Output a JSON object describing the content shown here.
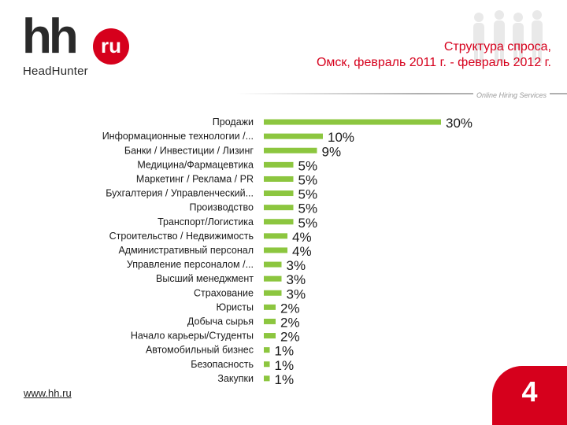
{
  "header": {
    "logo_hh": "hh",
    "logo_ru": "ru",
    "logo_sub": "HeadHunter",
    "title_line1": "Структура спроса,",
    "title_line2": "Омск, февраль 2011 г. - февраль 2012 г.",
    "tagline": "Online Hiring Services"
  },
  "footer": {
    "url": "www.hh.ru",
    "page_number": "4"
  },
  "colors": {
    "bar": "#8cc63f",
    "brand_red": "#d6001c",
    "label": "#1a1a1a"
  },
  "chart_data": {
    "type": "bar",
    "orientation": "horizontal",
    "categories": [
      "Продажи",
      "Информационные технологии /...",
      "Банки / Инвестиции / Лизинг",
      "Медицина/Фармацевтика",
      "Маркетинг / Реклама / PR",
      "Бухгалтерия / Управленческий...",
      "Производство",
      "Транспорт/Логистика",
      "Строительство / Недвижимость",
      "Административный персонал",
      "Управление персоналом /...",
      "Высший менеджмент",
      "Страхование",
      "Юристы",
      "Добыча сырья",
      "Начало карьеры/Студенты",
      "Автомобильный бизнес",
      "Безопасность",
      "Закупки"
    ],
    "values": [
      30,
      10,
      9,
      5,
      5,
      5,
      5,
      5,
      4,
      4,
      3,
      3,
      3,
      2,
      2,
      2,
      1,
      1,
      1
    ],
    "value_labels": [
      "30%",
      "10%",
      "9%",
      "5%",
      "5%",
      "5%",
      "5%",
      "5%",
      "4%",
      "4%",
      "3%",
      "3%",
      "3%",
      "2%",
      "2%",
      "2%",
      "1%",
      "1%",
      "1%"
    ],
    "unit": "%",
    "xlim": [
      0,
      30
    ],
    "grid": false,
    "legend": "none"
  }
}
